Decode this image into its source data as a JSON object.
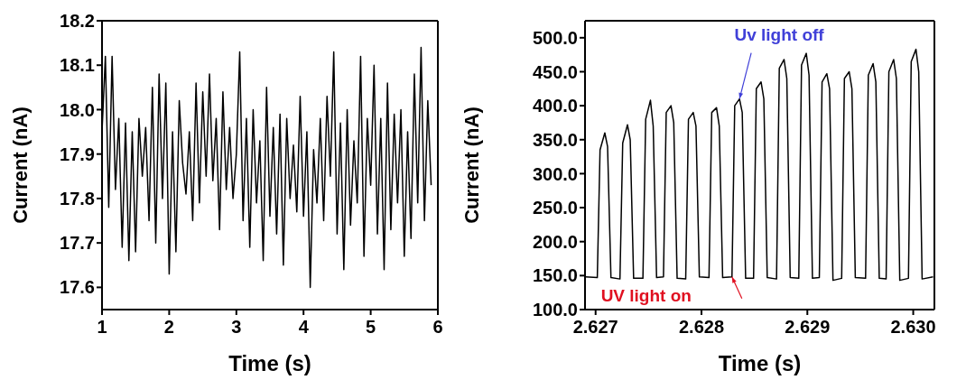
{
  "chart_data": [
    {
      "type": "line",
      "xlabel": "Time (s)",
      "ylabel": "Current (nA)",
      "xlim": [
        1,
        6
      ],
      "xticks": [
        1,
        2,
        3,
        4,
        5,
        6
      ],
      "ylim": [
        17.55,
        18.2
      ],
      "yticks": [
        17.6,
        17.7,
        17.8,
        17.9,
        {
          "value": 18,
          "label": "18.0"
        },
        18.1,
        18.2
      ],
      "grid": false,
      "legend": false,
      "marker": "none",
      "line_style": "solid",
      "series": [
        {
          "color": "#000000",
          "x": [
            1,
            1.05,
            1.1,
            1.15,
            1.2,
            1.25,
            1.3,
            1.35,
            1.4,
            1.45,
            1.5,
            1.55,
            1.6,
            1.65,
            1.7,
            1.75,
            1.8,
            1.85,
            1.9,
            1.95,
            2,
            2.05,
            2.1,
            2.15,
            2.2,
            2.25,
            2.3,
            2.35,
            2.4,
            2.45,
            2.5,
            2.55,
            2.6,
            2.65,
            2.7,
            2.75,
            2.8,
            2.85,
            2.9,
            2.95,
            3,
            3.05,
            3.1,
            3.15,
            3.2,
            3.25,
            3.3,
            3.35,
            3.4,
            3.45,
            3.5,
            3.55,
            3.6,
            3.65,
            3.7,
            3.75,
            3.8,
            3.85,
            3.9,
            3.95,
            4,
            4.05,
            4.1,
            4.15,
            4.2,
            4.25,
            4.3,
            4.35,
            4.4,
            4.45,
            4.5,
            4.55,
            4.6,
            4.65,
            4.7,
            4.75,
            4.8,
            4.85,
            4.9,
            4.95,
            5,
            5.05,
            5.1,
            5.15,
            5.2,
            5.25,
            5.3,
            5.35,
            5.4,
            5.45,
            5.5,
            5.55,
            5.6,
            5.65,
            5.7,
            5.75,
            5.8,
            5.85,
            5.9
          ],
          "values": [
            17.95,
            18.12,
            17.78,
            18.12,
            17.82,
            17.98,
            17.69,
            17.97,
            17.66,
            17.95,
            17.68,
            17.98,
            17.85,
            17.96,
            17.75,
            18.05,
            17.7,
            18.08,
            17.8,
            18.06,
            17.63,
            17.95,
            17.68,
            18.02,
            17.88,
            17.81,
            17.95,
            17.75,
            18.06,
            17.79,
            18.04,
            17.85,
            18.08,
            17.84,
            17.98,
            17.73,
            18.04,
            17.82,
            17.96,
            17.8,
            17.9,
            18.13,
            17.75,
            17.98,
            17.69,
            18.0,
            17.79,
            17.93,
            17.66,
            18.05,
            17.76,
            17.96,
            17.72,
            17.99,
            17.65,
            17.98,
            17.8,
            17.92,
            17.77,
            18.03,
            17.76,
            17.95,
            17.6,
            17.91,
            17.79,
            17.98,
            17.75,
            18.03,
            17.85,
            18.13,
            17.72,
            17.97,
            17.64,
            18.0,
            17.74,
            17.93,
            17.79,
            18.12,
            17.67,
            17.98,
            17.83,
            18.1,
            17.72,
            17.98,
            17.64,
            18.06,
            17.73,
            17.99,
            17.79,
            18.0,
            17.67,
            17.95,
            17.71,
            18.08,
            17.79,
            18.14,
            17.75,
            18.02,
            17.83
          ]
        }
      ]
    },
    {
      "type": "line",
      "xlabel": "Time (s)",
      "ylabel": "Current (nA)",
      "xlim": [
        2.6269,
        2.6302
      ],
      "xticks": [
        {
          "value": 2.627,
          "label": "2.627"
        },
        {
          "value": 2.628,
          "label": "2.628"
        },
        {
          "value": 2.629,
          "label": "2.629"
        },
        {
          "value": 2.63,
          "label": "2.630"
        }
      ],
      "ylim": [
        100,
        525
      ],
      "yticks": [
        {
          "value": 100,
          "label": "100.0"
        },
        {
          "value": 150,
          "label": "150.0"
        },
        {
          "value": 200,
          "label": "200.0"
        },
        {
          "value": 250,
          "label": "250.0"
        },
        {
          "value": 300,
          "label": "300.0"
        },
        {
          "value": 350,
          "label": "350.0"
        },
        {
          "value": 400,
          "label": "400.0"
        },
        {
          "value": 450,
          "label": "450.0"
        },
        {
          "value": 500,
          "label": "500.0"
        }
      ],
      "grid": false,
      "legend": false,
      "marker": "none",
      "line_style": "solid",
      "annotations": [
        {
          "text": "Uv light off",
          "x": 2.628359,
          "y": 410
        },
        {
          "text": "UV light on",
          "x": 2.628288,
          "y": 148
        }
      ],
      "series": [
        {
          "color": "#000000",
          "x": [
            2.626903,
            2.627016,
            2.627042,
            2.627087,
            2.627113,
            2.627145,
            2.62723,
            2.627256,
            2.627301,
            2.627327,
            2.627359,
            2.627447,
            2.627473,
            2.627518,
            2.627544,
            2.627576,
            2.627641,
            2.627667,
            2.627712,
            2.627738,
            2.62777,
            2.627851,
            2.627877,
            2.627922,
            2.627948,
            2.62798,
            2.628071,
            2.628097,
            2.628142,
            2.628168,
            2.6282,
            2.628288,
            2.628314,
            2.628359,
            2.628385,
            2.628417,
            2.628492,
            2.628518,
            2.628563,
            2.628589,
            2.628621,
            2.628709,
            2.628735,
            2.62878,
            2.628806,
            2.628838,
            2.628919,
            2.628945,
            2.62899,
            2.629016,
            2.629048,
            2.629113,
            2.629139,
            2.629184,
            2.62921,
            2.629242,
            2.629324,
            2.62935,
            2.629395,
            2.629421,
            2.629453,
            2.62955,
            2.629576,
            2.629621,
            2.629647,
            2.629679,
            2.629744,
            2.62977,
            2.629815,
            2.629841,
            2.629873,
            2.629955,
            2.629981,
            2.630026,
            2.630052,
            2.630084,
            2.630187
          ],
          "values": [
            148,
            147,
            335,
            360,
            340,
            147,
            145,
            345,
            372,
            350,
            146,
            146,
            380,
            408,
            370,
            147,
            148,
            390,
            400,
            375,
            146,
            145,
            380,
            390,
            370,
            148,
            147,
            390,
            397,
            370,
            147,
            148,
            400,
            410,
            390,
            146,
            146,
            425,
            435,
            410,
            147,
            145,
            455,
            468,
            440,
            147,
            146,
            460,
            477,
            445,
            146,
            147,
            435,
            447,
            425,
            143,
            146,
            440,
            450,
            425,
            147,
            146,
            445,
            462,
            435,
            146,
            145,
            450,
            468,
            440,
            143,
            146,
            465,
            483,
            450,
            145,
            148
          ]
        }
      ]
    }
  ]
}
